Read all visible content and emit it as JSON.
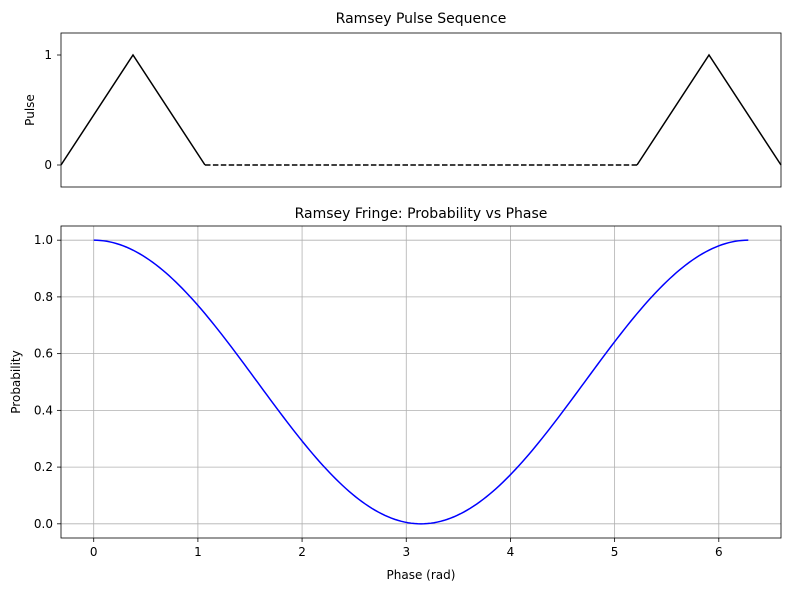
{
  "chart_data": [
    {
      "type": "line",
      "title": "Ramsey Pulse Sequence",
      "xlabel": "",
      "ylabel": "Pulse",
      "xlim": [
        0,
        1
      ],
      "ylim": [
        -0.2,
        1.2
      ],
      "yticks": [
        0,
        1
      ],
      "xticks_visible": false,
      "grid": false,
      "series": [
        {
          "style": "solid",
          "color": "#000000",
          "x": [
            0,
            0.1,
            0.2
          ],
          "y": [
            0,
            1,
            0
          ]
        },
        {
          "style": "dashed",
          "color": "#000000",
          "x": [
            0.2,
            0.8
          ],
          "y": [
            0,
            0
          ]
        },
        {
          "style": "solid",
          "color": "#000000",
          "x": [
            0.8,
            0.9,
            1.0
          ],
          "y": [
            0,
            1,
            0
          ]
        }
      ]
    },
    {
      "type": "line",
      "title": "Ramsey Fringe: Probability vs Phase",
      "xlabel": "Phase (rad)",
      "ylabel": "Probability",
      "xlim": [
        -0.314,
        6.597
      ],
      "ylim": [
        -0.05,
        1.05
      ],
      "xticks": [
        0,
        1,
        2,
        3,
        4,
        5,
        6
      ],
      "yticks": [
        0.0,
        0.2,
        0.4,
        0.6,
        0.8,
        1.0
      ],
      "grid": true,
      "series": [
        {
          "color": "#0000ff",
          "function": "cos^2(x/2)",
          "x_range": [
            0,
            6.283
          ],
          "samples": 200
        }
      ]
    }
  ]
}
